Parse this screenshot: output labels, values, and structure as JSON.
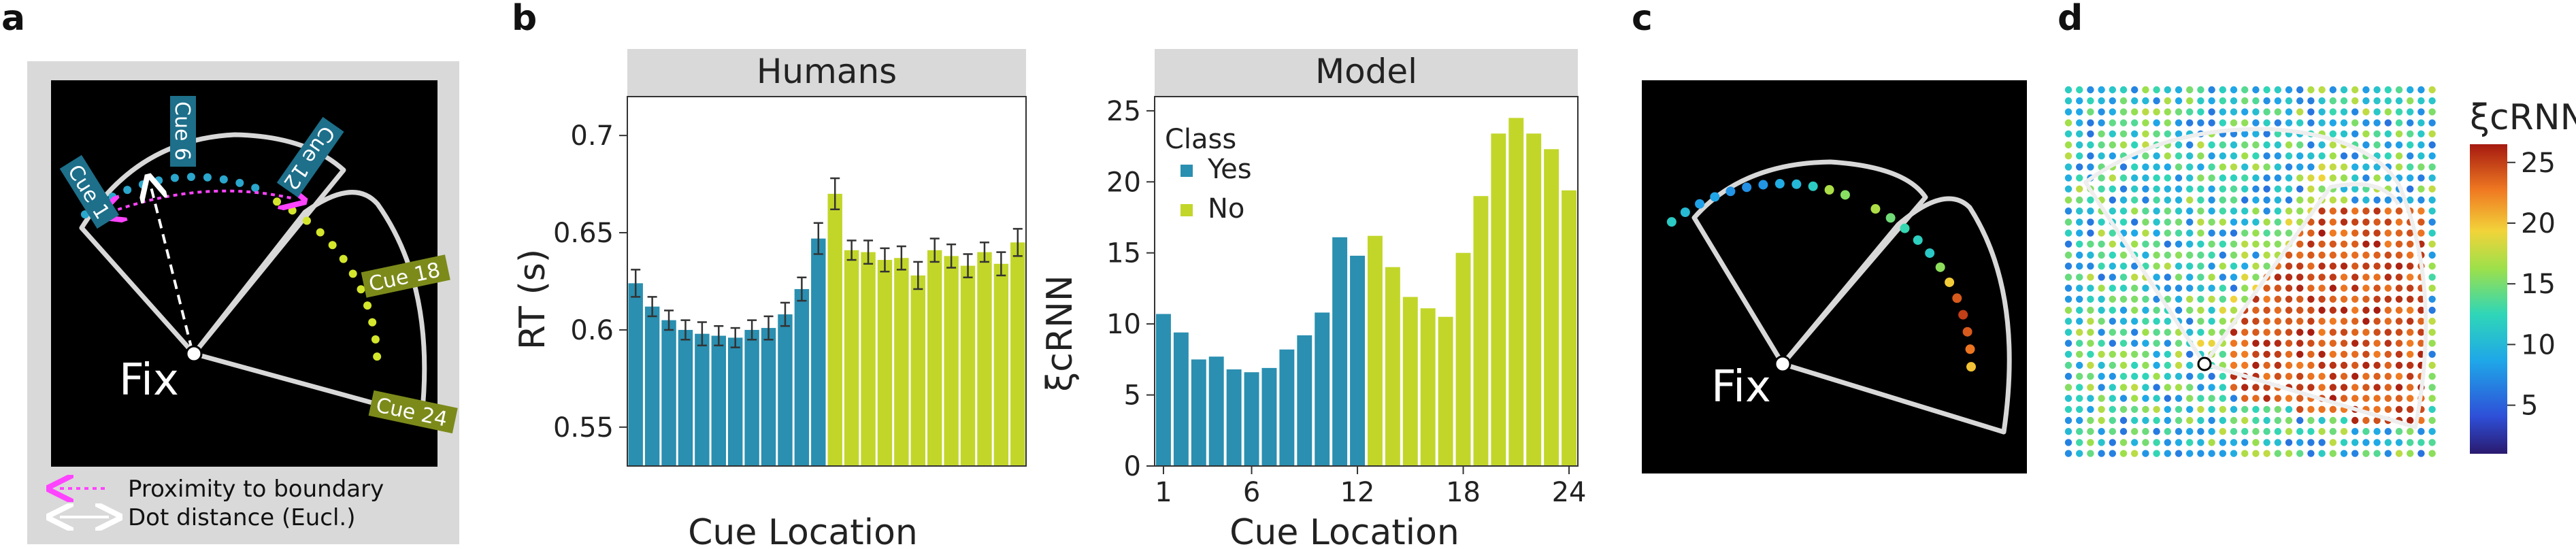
{
  "panels": {
    "a": {
      "letter": "a",
      "fix_label": "Fix",
      "cue_labels": [
        "Cue 1",
        "Cue 6",
        "Cue 12",
        "Cue 18",
        "Cue 24"
      ],
      "key": {
        "proximity": "Proximity to boundary",
        "distance": "Dot distance (Eucl.)"
      }
    },
    "b": {
      "letter": "b"
    },
    "c": {
      "letter": "c",
      "fix_label": "Fix"
    },
    "d": {
      "letter": "d",
      "colorbar_label": "ξcRNN",
      "colorbar_ticks": [
        "5",
        "10",
        "15",
        "20",
        "25"
      ]
    }
  },
  "colors": {
    "yes": "#2a8fb0",
    "no": "#c2d62a",
    "facet_bg": "#d9d9d9",
    "frame_bg": "#d9d9d9"
  },
  "chart_data": [
    {
      "type": "bar",
      "panel": "b-left",
      "title": "Humans",
      "xlabel": "Cue Location",
      "ylabel": "RT (s)",
      "ylim": [
        0.53,
        0.72
      ],
      "yticks": [
        "0.55",
        "0.6",
        "0.65",
        "0.7"
      ],
      "categories": [
        1,
        2,
        3,
        4,
        5,
        6,
        7,
        8,
        9,
        10,
        11,
        12,
        13,
        14,
        15,
        16,
        17,
        18,
        19,
        20,
        21,
        22,
        23,
        24
      ],
      "values": [
        0.624,
        0.612,
        0.605,
        0.6,
        0.598,
        0.597,
        0.596,
        0.6,
        0.601,
        0.608,
        0.621,
        0.647,
        0.67,
        0.641,
        0.64,
        0.636,
        0.637,
        0.628,
        0.641,
        0.638,
        0.633,
        0.64,
        0.634,
        0.645
      ],
      "errors": [
        0.007,
        0.005,
        0.005,
        0.005,
        0.006,
        0.005,
        0.005,
        0.005,
        0.006,
        0.006,
        0.006,
        0.008,
        0.008,
        0.005,
        0.006,
        0.006,
        0.006,
        0.007,
        0.006,
        0.006,
        0.006,
        0.005,
        0.006,
        0.007
      ],
      "class": [
        "Yes",
        "Yes",
        "Yes",
        "Yes",
        "Yes",
        "Yes",
        "Yes",
        "Yes",
        "Yes",
        "Yes",
        "Yes",
        "Yes",
        "No",
        "No",
        "No",
        "No",
        "No",
        "No",
        "No",
        "No",
        "No",
        "No",
        "No",
        "No"
      ]
    },
    {
      "type": "bar",
      "panel": "b-right",
      "title": "Model",
      "xlabel": "Cue Location",
      "ylabel": "ξcRNN",
      "ylim": [
        0,
        26
      ],
      "yticks": [
        "0",
        "5",
        "10",
        "15",
        "20",
        "25"
      ],
      "xticks": [
        "1",
        "6",
        "12",
        "18",
        "24"
      ],
      "categories": [
        1,
        2,
        3,
        4,
        5,
        6,
        7,
        8,
        9,
        10,
        11,
        12,
        13,
        14,
        15,
        16,
        17,
        18,
        19,
        20,
        21,
        22,
        23,
        24
      ],
      "values": [
        10.7,
        9.4,
        7.5,
        7.7,
        6.8,
        6.6,
        6.9,
        8.2,
        9.2,
        10.8,
        16.1,
        14.8,
        16.2,
        14.0,
        11.9,
        11.1,
        10.5,
        15.0,
        19.0,
        23.4,
        24.5,
        23.4,
        22.3,
        19.4
      ],
      "class": [
        "Yes",
        "Yes",
        "Yes",
        "Yes",
        "Yes",
        "Yes",
        "Yes",
        "Yes",
        "Yes",
        "Yes",
        "Yes",
        "Yes",
        "No",
        "No",
        "No",
        "No",
        "No",
        "No",
        "No",
        "No",
        "No",
        "No",
        "No",
        "No"
      ],
      "legend": {
        "title": "Class",
        "entries": [
          "Yes",
          "No"
        ],
        "position": "top-left"
      }
    }
  ]
}
